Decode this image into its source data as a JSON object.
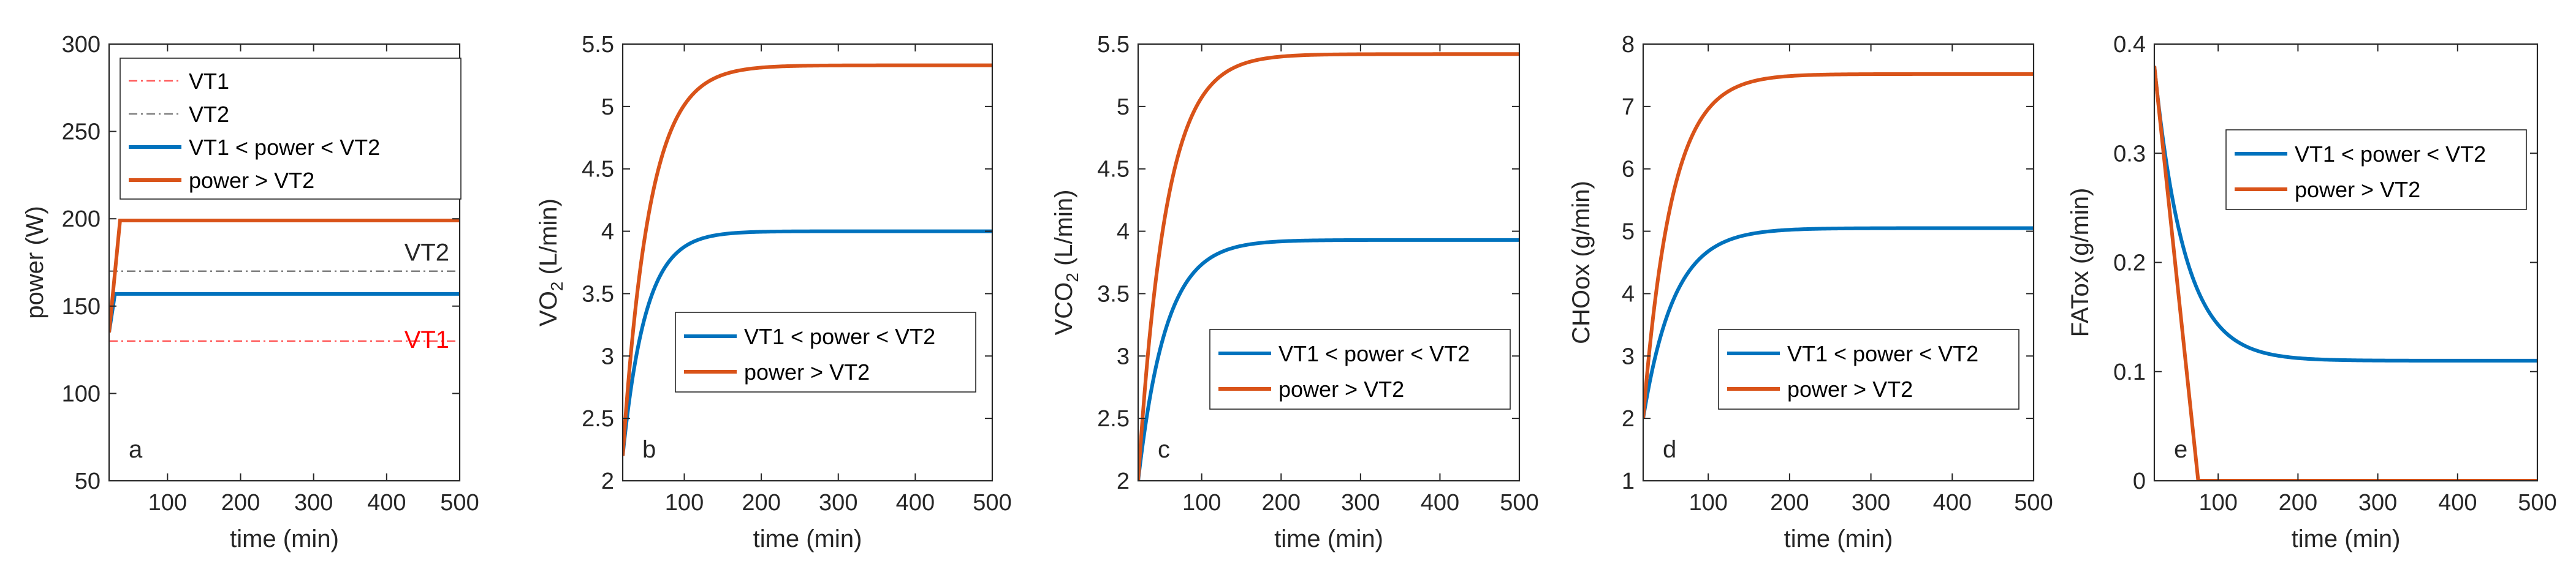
{
  "colors": {
    "blue": "#0072BD",
    "orange": "#D95319",
    "vt1": "#FF5A5A",
    "vt2": "#7F7F7F",
    "axis": "#262626",
    "vt1_text": "#FF0000",
    "legend_border": "#262626"
  },
  "chart_data": [
    {
      "id": "a",
      "type": "line",
      "panel_label": "a",
      "xlabel": "time (min)",
      "ylabel": "power (W)",
      "xlim": [
        20,
        500
      ],
      "ylim": [
        50,
        300
      ],
      "xticks": [
        100,
        200,
        300,
        400,
        500
      ],
      "yticks": [
        50,
        100,
        150,
        200,
        250,
        300
      ],
      "legend_position": "top",
      "legend_order": [
        "vt1",
        "vt2",
        "blue",
        "orange"
      ],
      "series": [
        {
          "key": "vt1",
          "name": "VT1",
          "style": "dashdot",
          "x": [
            20,
            500
          ],
          "y": [
            130,
            130
          ]
        },
        {
          "key": "vt2",
          "name": "VT2",
          "style": "dashdot",
          "x": [
            20,
            500
          ],
          "y": [
            170,
            170
          ]
        },
        {
          "key": "blue",
          "name": "VT1 < power < VT2",
          "style": "solid",
          "x": [
            20,
            28,
            500
          ],
          "y": [
            135,
            157,
            157
          ]
        },
        {
          "key": "orange",
          "name": "power > VT2",
          "style": "solid",
          "x": [
            20,
            35,
            500
          ],
          "y": [
            135,
            199,
            199
          ]
        }
      ],
      "annotations": [
        {
          "text": "VT2",
          "x": 455,
          "y": 176,
          "color_key": "axis"
        },
        {
          "text": "VT1",
          "x": 455,
          "y": 126,
          "color_key": "vt1_text"
        }
      ]
    },
    {
      "id": "b",
      "type": "line",
      "panel_label": "b",
      "xlabel": "time (min)",
      "ylabel": "VO",
      "ylabel_sub": "2",
      "ylabel_suffix": " (L/min)",
      "xlim": [
        20,
        500
      ],
      "ylim": [
        2,
        5.5
      ],
      "xticks": [
        100,
        200,
        300,
        400,
        500
      ],
      "yticks": [
        2,
        2.5,
        3,
        3.5,
        4,
        4.5,
        5,
        5.5
      ],
      "legend_position": "center",
      "legend_order": [
        "blue",
        "orange"
      ],
      "series": [
        {
          "key": "blue",
          "name": "VT1 < power < VT2",
          "model": "exp_rise",
          "start": 2.2,
          "end": 4.0,
          "tau": 30
        },
        {
          "key": "orange",
          "name": "power > VT2",
          "model": "exp_rise",
          "start": 2.2,
          "end": 5.33,
          "tau": 35
        }
      ]
    },
    {
      "id": "c",
      "type": "line",
      "panel_label": "c",
      "xlabel": "time (min)",
      "ylabel": "VCO",
      "ylabel_sub": "2",
      "ylabel_suffix": " (L/min)",
      "xlim": [
        20,
        500
      ],
      "ylim": [
        2,
        5.5
      ],
      "xticks": [
        100,
        200,
        300,
        400,
        500
      ],
      "yticks": [
        2,
        2.5,
        3,
        3.5,
        4,
        4.5,
        5,
        5.5
      ],
      "legend_position": "center",
      "legend_order": [
        "blue",
        "orange"
      ],
      "series": [
        {
          "key": "blue",
          "name": "VT1 < power < VT2",
          "model": "exp_rise",
          "start": 2.0,
          "end": 3.93,
          "tau": 35
        },
        {
          "key": "orange",
          "name": "power > VT2",
          "model": "exp_rise",
          "start": 2.0,
          "end": 5.42,
          "tau": 35
        }
      ]
    },
    {
      "id": "d",
      "type": "line",
      "panel_label": "d",
      "xlabel": "time (min)",
      "ylabel": "CHOox (g/min)",
      "xlim": [
        20,
        500
      ],
      "ylim": [
        1,
        8
      ],
      "xticks": [
        100,
        200,
        300,
        400,
        500
      ],
      "yticks": [
        1,
        2,
        3,
        4,
        5,
        6,
        7,
        8
      ],
      "legend_position": "center",
      "legend_order": [
        "blue",
        "orange"
      ],
      "series": [
        {
          "key": "blue",
          "name": "VT1 < power < VT2",
          "model": "exp_rise",
          "start": 2.0,
          "end": 5.05,
          "tau": 38
        },
        {
          "key": "orange",
          "name": "power > VT2",
          "model": "exp_rise",
          "start": 2.0,
          "end": 7.52,
          "tau": 35
        }
      ]
    },
    {
      "id": "e",
      "type": "line",
      "panel_label": "e",
      "xlabel": "time (min)",
      "ylabel": "FATox (g/min)",
      "xlim": [
        20,
        500
      ],
      "ylim": [
        0,
        0.4
      ],
      "xticks": [
        100,
        200,
        300,
        400,
        500
      ],
      "yticks": [
        0,
        0.1,
        0.2,
        0.3,
        0.4
      ],
      "legend_position": "top-right",
      "legend_order": [
        "blue",
        "orange"
      ],
      "series": [
        {
          "key": "blue",
          "name": "VT1 < power < VT2",
          "model": "exp_decay",
          "start": 0.38,
          "end": 0.11,
          "tau": 38
        },
        {
          "key": "orange",
          "name": "power > VT2",
          "model": "points",
          "x": [
            20,
            75,
            500
          ],
          "y": [
            0.38,
            0.0,
            0.0
          ]
        }
      ]
    }
  ]
}
